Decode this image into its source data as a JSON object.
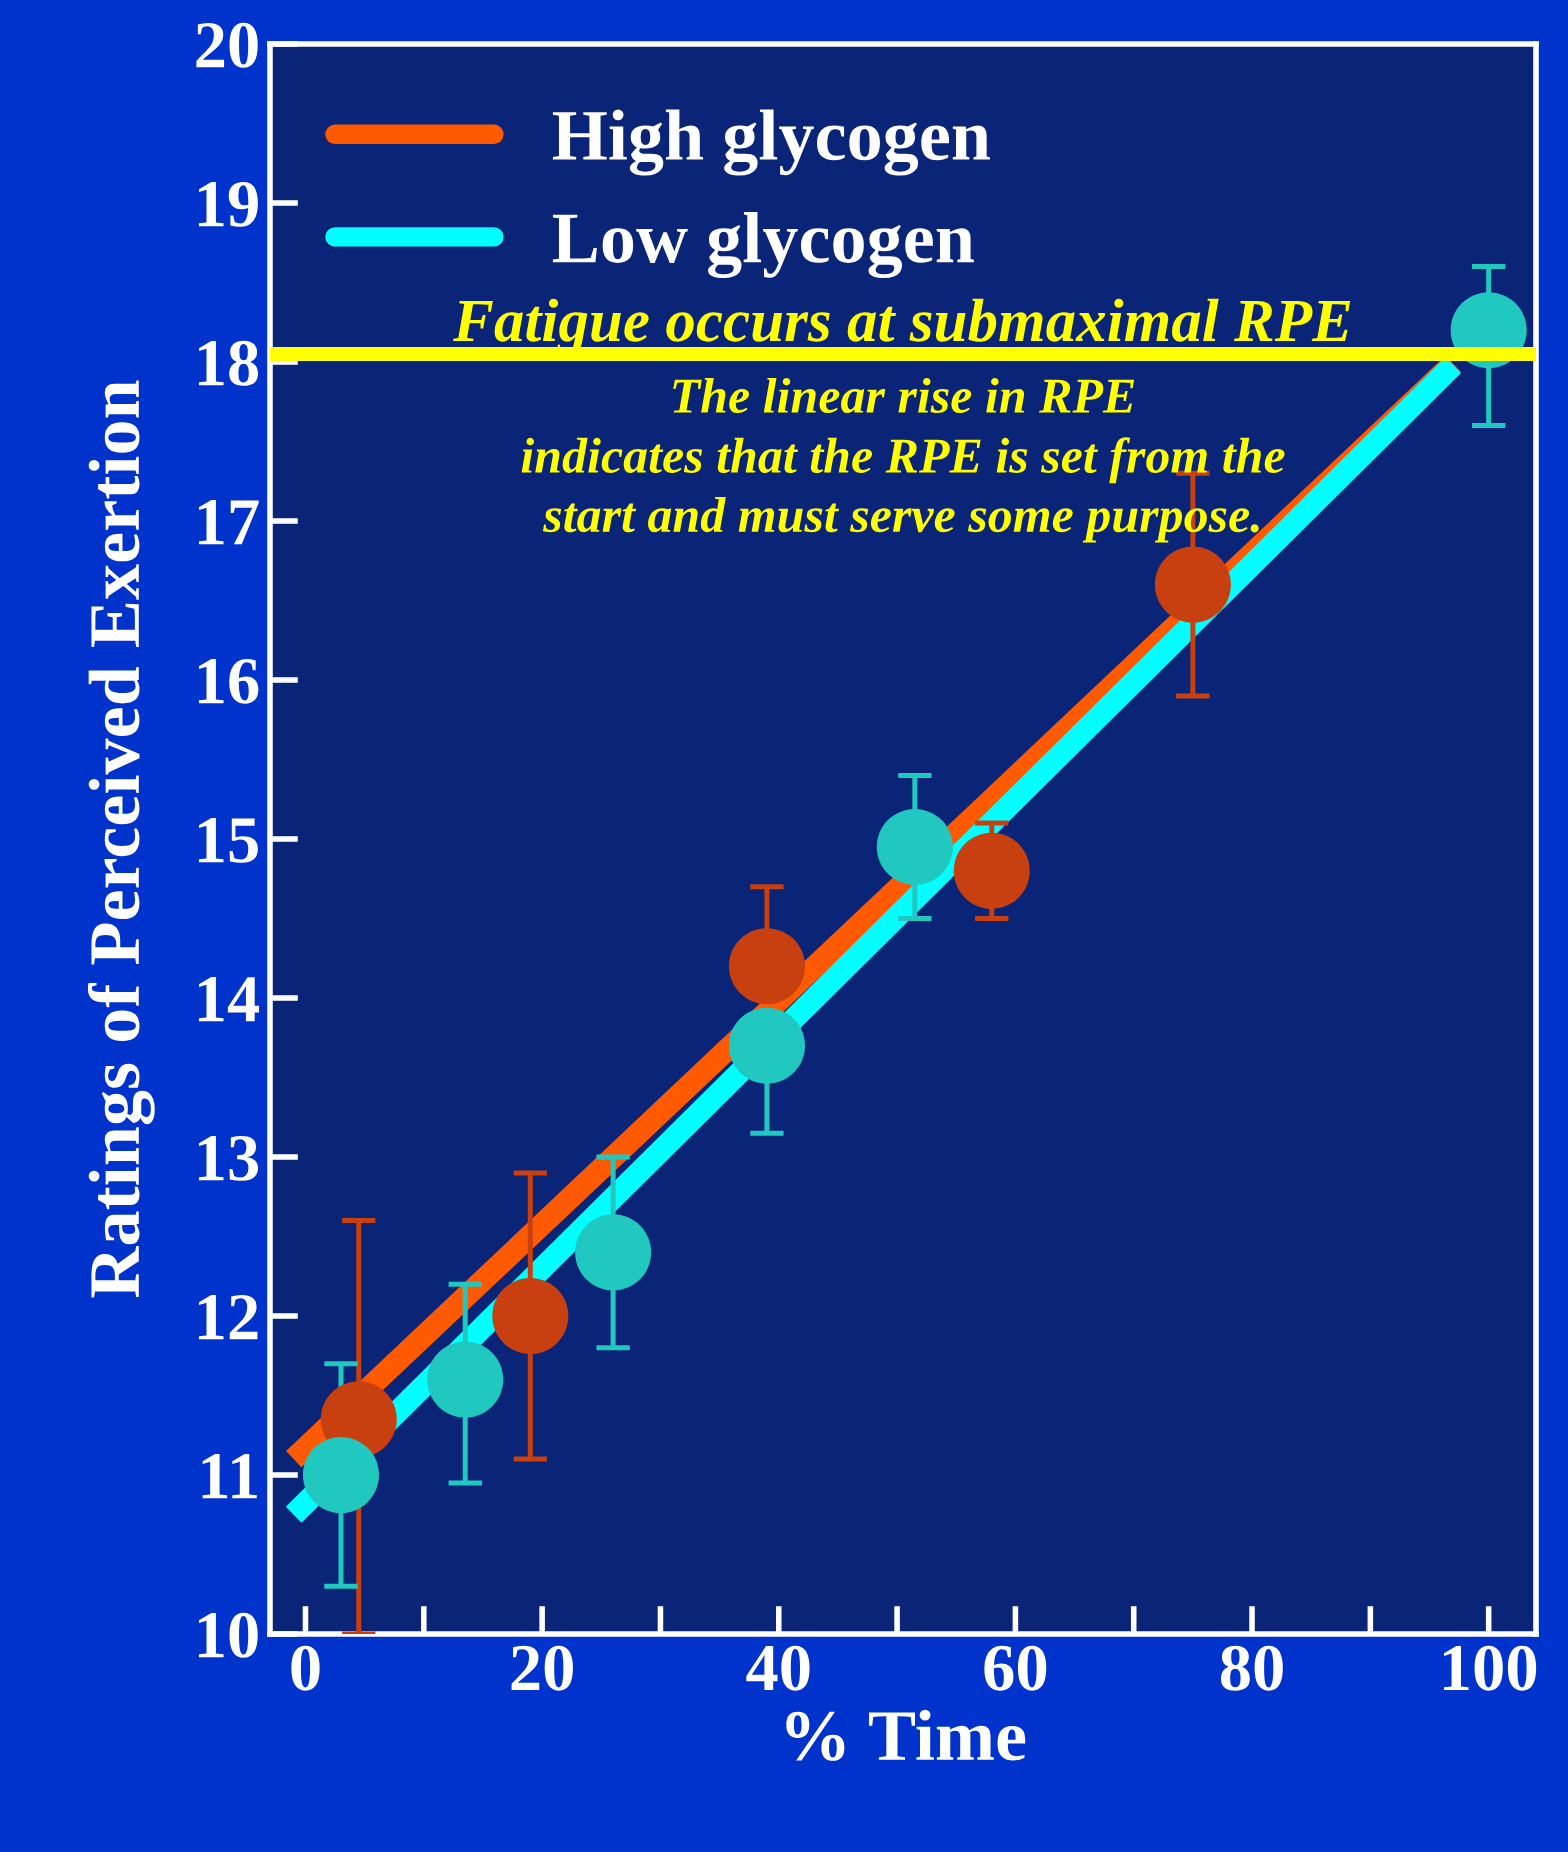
{
  "chart_data": {
    "type": "scatter",
    "xlabel": "% Time",
    "ylabel": "Ratings of Perceived Exertion",
    "xlim": [
      -3,
      104
    ],
    "ylim": [
      10,
      20
    ],
    "xticks": [
      0,
      {
        "value": 10,
        "label": null
      },
      20,
      {
        "value": 30,
        "label": null
      },
      40,
      {
        "value": 50,
        "label": null
      },
      60,
      {
        "value": 70,
        "label": null
      },
      80,
      {
        "value": 90,
        "label": null
      },
      100
    ],
    "yticks": [
      10,
      11,
      12,
      13,
      14,
      15,
      16,
      17,
      18,
      19,
      20
    ],
    "grid": false,
    "legend": "top left",
    "marker": "circle",
    "series": [
      {
        "type": "line",
        "marker": "none",
        "name": "High glycogen",
        "color": "#ff5a00",
        "x": [
          -1,
          97
        ],
        "values": [
          11.1,
          17.99
        ]
      },
      {
        "type": "line",
        "marker": "none",
        "name": "Low glycogen",
        "color": "#00ffff",
        "x": [
          -1,
          97
        ],
        "values": [
          10.75,
          17.98
        ]
      },
      {
        "color": "#c84010",
        "x": [
          4.5,
          19,
          39,
          58,
          75
        ],
        "values": [
          11.35,
          12.0,
          14.2,
          14.8,
          16.6
        ],
        "errors": [
          [
            10.0,
            12.6
          ],
          [
            11.1,
            12.9
          ],
          [
            14.2,
            14.7
          ],
          [
            14.5,
            15.1
          ],
          [
            15.9,
            17.3
          ]
        ]
      },
      {
        "color": "#20c8c0",
        "x": [
          3,
          13.5,
          26,
          39,
          51.5,
          100
        ],
        "values": [
          11.0,
          11.6,
          12.4,
          13.7,
          14.95,
          18.2
        ],
        "errors": [
          [
            10.3,
            11.7
          ],
          [
            10.95,
            12.2
          ],
          [
            11.8,
            13.0
          ],
          [
            13.15,
            13.7
          ],
          [
            14.5,
            15.4
          ],
          [
            17.6,
            18.6
          ]
        ]
      }
    ],
    "ref_lines": [
      {
        "axis": "y",
        "value": 18.05,
        "label": "Fatigue occurs at submaximal RPE",
        "color": "#ffff00"
      }
    ],
    "annotations": [
      "The linear rise in RPE\nindicates that the RPE is set from the\nstart and must serve some purpose."
    ]
  }
}
